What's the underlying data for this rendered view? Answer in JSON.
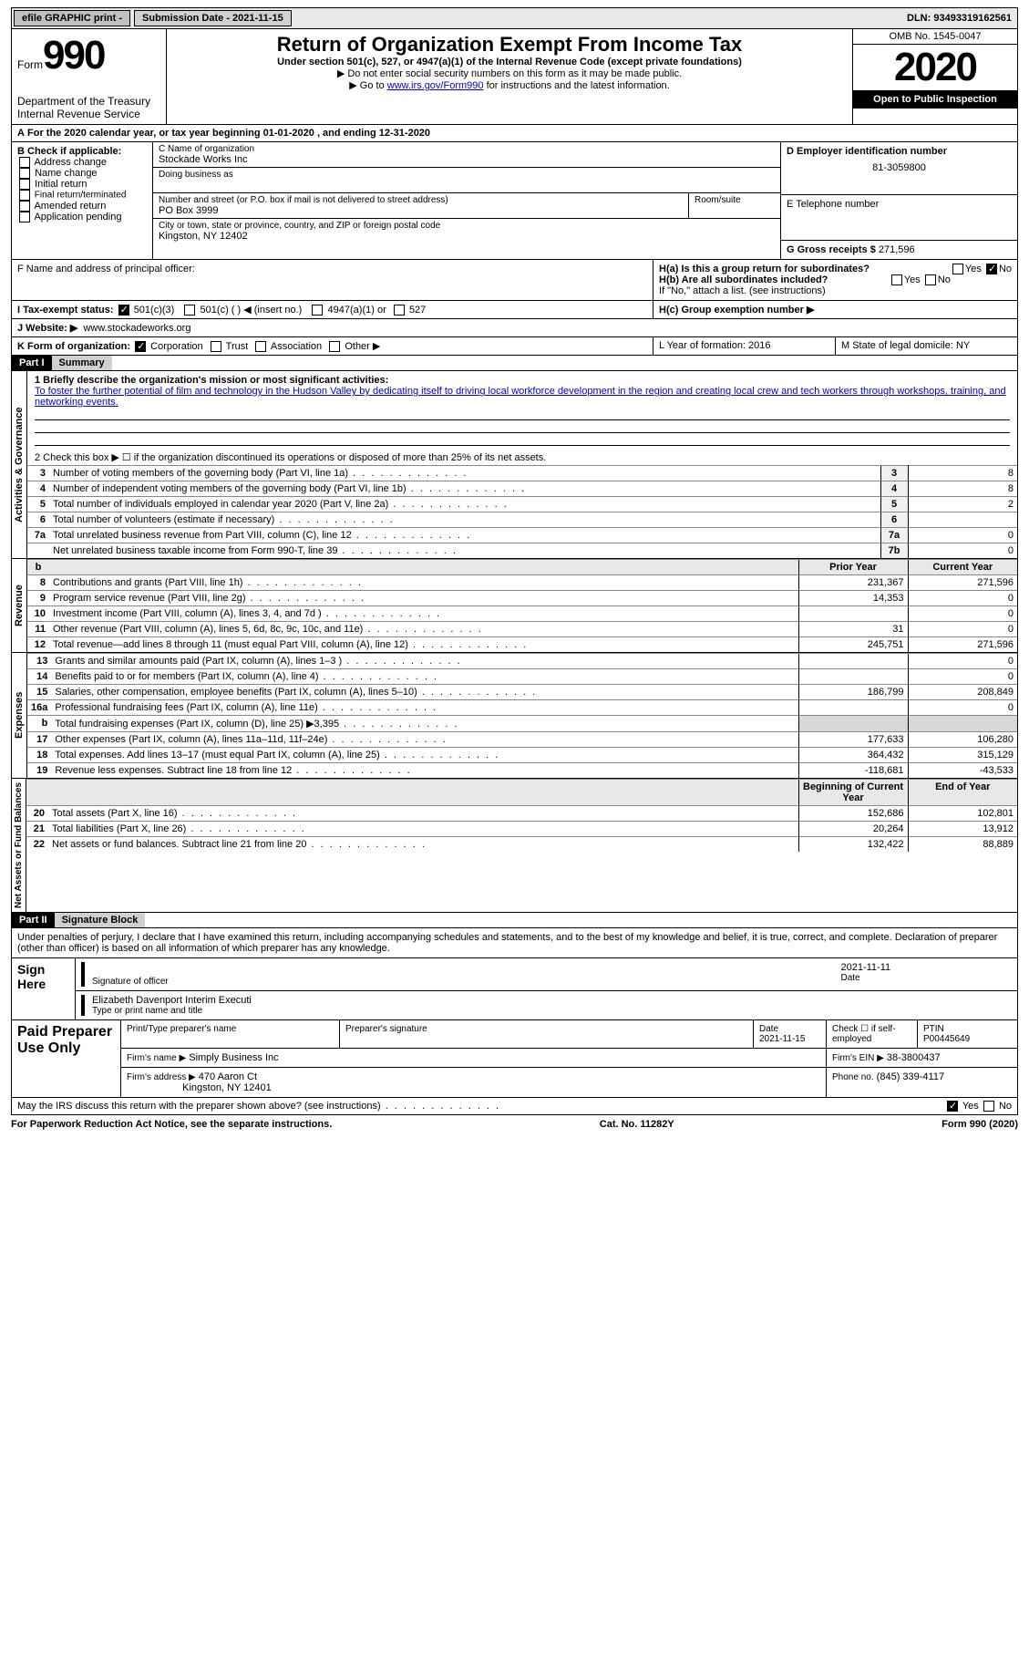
{
  "topbar": {
    "efile": "efile GRAPHIC print -",
    "submission": "Submission Date - 2021-11-15",
    "dln": "DLN: 93493319162561"
  },
  "header": {
    "form_label": "Form",
    "form_number": "990",
    "dept": "Department of the Treasury\nInternal Revenue Service",
    "title": "Return of Organization Exempt From Income Tax",
    "subtitle": "Under section 501(c), 527, or 4947(a)(1) of the Internal Revenue Code (except private foundations)",
    "note1": "▶ Do not enter social security numbers on this form as it may be made public.",
    "note2_pre": "▶ Go to ",
    "note2_link": "www.irs.gov/Form990",
    "note2_post": " for instructions and the latest information.",
    "omb": "OMB No. 1545-0047",
    "year": "2020",
    "inspection": "Open to Public Inspection"
  },
  "A": {
    "text": "For the 2020 calendar year, or tax year beginning 01-01-2020   , and ending 12-31-2020"
  },
  "B": {
    "label": "B Check if applicable:",
    "items": [
      "Address change",
      "Name change",
      "Initial return",
      "Final return/terminated",
      "Amended return",
      "Application pending"
    ]
  },
  "C": {
    "label": "C Name of organization",
    "name": "Stockade Works Inc",
    "dba_label": "Doing business as",
    "street_label": "Number and street (or P.O. box if mail is not delivered to street address)",
    "room_label": "Room/suite",
    "street": "PO Box 3999",
    "city_label": "City or town, state or province, country, and ZIP or foreign postal code",
    "city": "Kingston, NY  12402"
  },
  "D": {
    "label": "D Employer identification number",
    "value": "81-3059800"
  },
  "E": {
    "label": "E Telephone number",
    "value": ""
  },
  "G": {
    "label": "G Gross receipts $",
    "value": "271,596"
  },
  "F": {
    "label": "F Name and address of principal officer:"
  },
  "H": {
    "a_label": "H(a)  Is this a group return for subordinates?",
    "b_label": "H(b)  Are all subordinates included?",
    "b_note": "If \"No,\" attach a list. (see instructions)",
    "c_label": "H(c)  Group exemption number ▶",
    "yes": "Yes",
    "no": "No"
  },
  "I": {
    "label": "I    Tax-exempt status:",
    "opts": [
      "501(c)(3)",
      "501(c) (  ) ◀ (insert no.)",
      "4947(a)(1) or",
      "527"
    ]
  },
  "J": {
    "label": "J   Website: ▶",
    "value": "www.stockadeworks.org"
  },
  "K": {
    "label": "K Form of organization:",
    "opts": [
      "Corporation",
      "Trust",
      "Association",
      "Other ▶"
    ]
  },
  "L": {
    "label": "L Year of formation: 2016"
  },
  "M": {
    "label": "M State of legal domicile: NY"
  },
  "part1": {
    "label": "Part I",
    "title": "Summary"
  },
  "summary": {
    "line1_label": "1   Briefly describe the organization's mission or most significant activities:",
    "mission": "To foster the further potential of film and technology in the Hudson Valley by dedicating itself to driving local workforce development in the region and creating local crew and tech workers through workshops, training, and networking events.",
    "line2": "2   Check this box ▶ ☐  if the organization discontinued its operations or disposed of more than 25% of its net assets.",
    "rows_gov": [
      {
        "n": "3",
        "label": "Number of voting members of the governing body (Part VI, line 1a)",
        "box": "3",
        "v": "8"
      },
      {
        "n": "4",
        "label": "Number of independent voting members of the governing body (Part VI, line 1b)",
        "box": "4",
        "v": "8"
      },
      {
        "n": "5",
        "label": "Total number of individuals employed in calendar year 2020 (Part V, line 2a)",
        "box": "5",
        "v": "2"
      },
      {
        "n": "6",
        "label": "Total number of volunteers (estimate if necessary)",
        "box": "6",
        "v": ""
      },
      {
        "n": "7a",
        "label": "Total unrelated business revenue from Part VIII, column (C), line 12",
        "box": "7a",
        "v": "0"
      },
      {
        "n": "",
        "label": "Net unrelated business taxable income from Form 990-T, line 39",
        "box": "7b",
        "v": "0"
      }
    ],
    "col_hdr": {
      "b": "b",
      "prior": "Prior Year",
      "current": "Current Year"
    },
    "rows_rev": [
      {
        "n": "8",
        "label": "Contributions and grants (Part VIII, line 1h)",
        "py": "231,367",
        "cy": "271,596"
      },
      {
        "n": "9",
        "label": "Program service revenue (Part VIII, line 2g)",
        "py": "14,353",
        "cy": "0"
      },
      {
        "n": "10",
        "label": "Investment income (Part VIII, column (A), lines 3, 4, and 7d )",
        "py": "",
        "cy": "0"
      },
      {
        "n": "11",
        "label": "Other revenue (Part VIII, column (A), lines 5, 6d, 8c, 9c, 10c, and 11e)",
        "py": "31",
        "cy": "0"
      },
      {
        "n": "12",
        "label": "Total revenue—add lines 8 through 11 (must equal Part VIII, column (A), line 12)",
        "py": "245,751",
        "cy": "271,596"
      }
    ],
    "rows_exp": [
      {
        "n": "13",
        "label": "Grants and similar amounts paid (Part IX, column (A), lines 1–3 )",
        "py": "",
        "cy": "0"
      },
      {
        "n": "14",
        "label": "Benefits paid to or for members (Part IX, column (A), line 4)",
        "py": "",
        "cy": "0"
      },
      {
        "n": "15",
        "label": "Salaries, other compensation, employee benefits (Part IX, column (A), lines 5–10)",
        "py": "186,799",
        "cy": "208,849"
      },
      {
        "n": "16a",
        "label": "Professional fundraising fees (Part IX, column (A), line 11e)",
        "py": "",
        "cy": "0"
      },
      {
        "n": "b",
        "label": "Total fundraising expenses (Part IX, column (D), line 25) ▶3,395",
        "py": "shade",
        "cy": "shade"
      },
      {
        "n": "17",
        "label": "Other expenses (Part IX, column (A), lines 11a–11d, 11f–24e)",
        "py": "177,633",
        "cy": "106,280"
      },
      {
        "n": "18",
        "label": "Total expenses. Add lines 13–17 (must equal Part IX, column (A), line 25)",
        "py": "364,432",
        "cy": "315,129"
      },
      {
        "n": "19",
        "label": "Revenue less expenses. Subtract line 18 from line 12",
        "py": "-118,681",
        "cy": "-43,533"
      }
    ],
    "col_hdr2": {
      "prior": "Beginning of Current Year",
      "current": "End of Year"
    },
    "rows_net": [
      {
        "n": "20",
        "label": "Total assets (Part X, line 16)",
        "py": "152,686",
        "cy": "102,801"
      },
      {
        "n": "21",
        "label": "Total liabilities (Part X, line 26)",
        "py": "20,264",
        "cy": "13,912"
      },
      {
        "n": "22",
        "label": "Net assets or fund balances. Subtract line 21 from line 20",
        "py": "132,422",
        "cy": "88,889"
      }
    ],
    "sec_labels": {
      "gov": "Activities & Governance",
      "rev": "Revenue",
      "exp": "Expenses",
      "net": "Net Assets or Fund Balances"
    }
  },
  "part2": {
    "label": "Part II",
    "title": "Signature Block"
  },
  "sig": {
    "penalty": "Under penalties of perjury, I declare that I have examined this return, including accompanying schedules and statements, and to the best of my knowledge and belief, it is true, correct, and complete. Declaration of preparer (other than officer) is based on all information of which preparer has any knowledge.",
    "sign_here": "Sign Here",
    "sig_officer": "Signature of officer",
    "sig_date": "2021-11-11",
    "date_label": "Date",
    "officer_name": "Elizabeth Davenport  Interim Executi",
    "officer_type": "Type or print name and title",
    "paid": "Paid Preparer Use Only",
    "prep_name_label": "Print/Type preparer's name",
    "prep_sig_label": "Preparer's signature",
    "prep_date_label": "Date",
    "prep_date": "2021-11-15",
    "check_label": "Check ☐ if self-employed",
    "ptin_label": "PTIN",
    "ptin": "P00445649",
    "firm_name_label": "Firm's name   ▶",
    "firm_name": "Simply Business Inc",
    "firm_ein_label": "Firm's EIN ▶",
    "firm_ein": "38-3800437",
    "firm_addr_label": "Firm's address ▶",
    "firm_addr": "470 Aaron Ct",
    "firm_city": "Kingston, NY  12401",
    "phone_label": "Phone no.",
    "phone": "(845) 339-4117",
    "may_irs": "May the IRS discuss this return with the preparer shown above? (see instructions)"
  },
  "footer": {
    "pra": "For Paperwork Reduction Act Notice, see the separate instructions.",
    "cat": "Cat. No. 11282Y",
    "form": "Form 990 (2020)"
  }
}
